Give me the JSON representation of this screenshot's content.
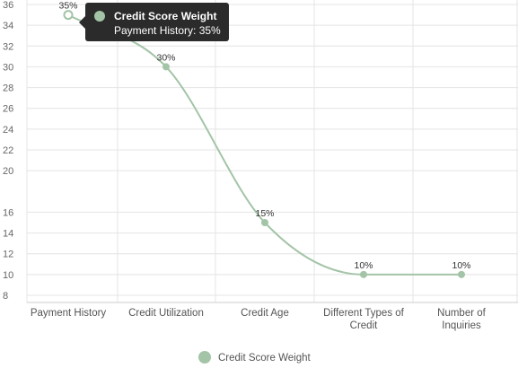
{
  "chart_data": {
    "type": "line",
    "curve": "smooth",
    "categories": [
      "Payment History",
      "Credit Utilization",
      "Credit Age",
      "Different Types of Credit",
      "Number of Inquiries"
    ],
    "series": [
      {
        "name": "Credit Score Weight",
        "values": [
          35,
          30,
          15,
          10,
          10
        ],
        "color": "#a3c4a7"
      }
    ],
    "data_labels": [
      "35%",
      "30%",
      "15%",
      "10%",
      "10%"
    ],
    "y_ticks": [
      8,
      10,
      12,
      14,
      16,
      20,
      22,
      24,
      26,
      28,
      30,
      32,
      34,
      36
    ],
    "ylim": [
      8,
      36
    ],
    "grid": true,
    "legend": {
      "position": "bottom",
      "entries": [
        "Credit Score Weight"
      ]
    },
    "colors": {
      "line": "#a3c4a7",
      "grid": "#e4e4e4",
      "axis": "#cccccc"
    }
  },
  "tooltip": {
    "title": "Credit Score Weight",
    "body": "Payment History: 35%",
    "point_index": 0
  }
}
